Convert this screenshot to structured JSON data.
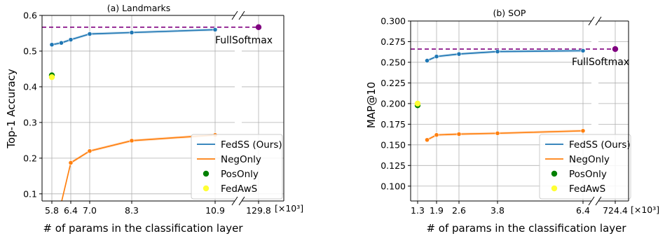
{
  "chart_data": [
    {
      "type": "line",
      "title": "(a) Landmarks",
      "xlabel": "# of params in the classification layer",
      "ylabel": "Top-1 Accuracy",
      "x_unit": "[×10³]",
      "x_ticks": [
        "5.8",
        "6.4",
        "7.0",
        "8.3",
        "10.9",
        "129.8"
      ],
      "xlim": [
        5.6,
        11.45
      ],
      "ylim": [
        0.08,
        0.6
      ],
      "y_ticks": [
        "0.1",
        "0.2",
        "0.3",
        "0.4",
        "0.5",
        "0.6"
      ],
      "broken_x_axis": true,
      "full_softmax": {
        "label": "FullSoftmax",
        "x": 129.8,
        "y": 0.567
      },
      "series": [
        {
          "name": "FedSS (Ours)",
          "color": "#1f77b4",
          "x": [
            5.8,
            6.1,
            6.4,
            7.0,
            8.3,
            10.9
          ],
          "y": [
            0.518,
            0.523,
            0.532,
            0.548,
            0.552,
            0.56
          ]
        },
        {
          "name": "NegOnly",
          "color": "#ff7f0e",
          "x": [
            5.8,
            6.1,
            6.4,
            7.0,
            8.3,
            10.9
          ],
          "y": [
            0.0,
            0.075,
            0.187,
            0.22,
            0.249,
            0.265
          ]
        },
        {
          "name": "PosOnly",
          "color": "#008000",
          "marker_only": true,
          "x": [
            5.8
          ],
          "y": [
            0.432
          ]
        },
        {
          "name": "FedAwS",
          "color": "#ffff33",
          "marker_only": true,
          "x": [
            5.8
          ],
          "y": [
            0.427
          ]
        }
      ],
      "legend": "lower-right"
    },
    {
      "type": "line",
      "title": "(b) SOP",
      "xlabel": "# of params in the classification layer",
      "ylabel": "MAP@10",
      "x_unit": "[×10³]",
      "x_ticks": [
        "1.3",
        "1.9",
        "2.6",
        "3.8",
        "6.4",
        "724.4"
      ],
      "xlim": [
        1.27,
        6.85
      ],
      "ylim": [
        0.082,
        0.3
      ],
      "y_ticks": [
        "0.100",
        "0.125",
        "0.150",
        "0.175",
        "0.200",
        "0.225",
        "0.250",
        "0.275",
        "0.300"
      ],
      "broken_x_axis": true,
      "full_softmax": {
        "label": "FullSoftmax",
        "x": 724.4,
        "y": 0.266
      },
      "series": [
        {
          "name": "FedSS (Ours)",
          "color": "#1f77b4",
          "x": [
            1.6,
            1.9,
            2.6,
            3.8,
            6.4
          ],
          "y": [
            0.252,
            0.257,
            0.26,
            0.263,
            0.264
          ]
        },
        {
          "name": "NegOnly",
          "color": "#ff7f0e",
          "x": [
            1.6,
            1.9,
            2.6,
            3.8,
            6.4
          ],
          "y": [
            0.156,
            0.162,
            0.163,
            0.164,
            0.167
          ]
        },
        {
          "name": "PosOnly",
          "color": "#008000",
          "marker_only": true,
          "x": [
            1.3
          ],
          "y": [
            0.198
          ]
        },
        {
          "name": "FedAwS",
          "color": "#ffff33",
          "marker_only": true,
          "x": [
            1.3
          ],
          "y": [
            0.2
          ]
        }
      ],
      "legend": "lower-right"
    }
  ],
  "colors": {
    "fullsoftmax": "#800080",
    "fedss": "#1f77b4",
    "negonly": "#ff7f0e",
    "posonly": "#008000",
    "fedaws": "#ffff33"
  }
}
